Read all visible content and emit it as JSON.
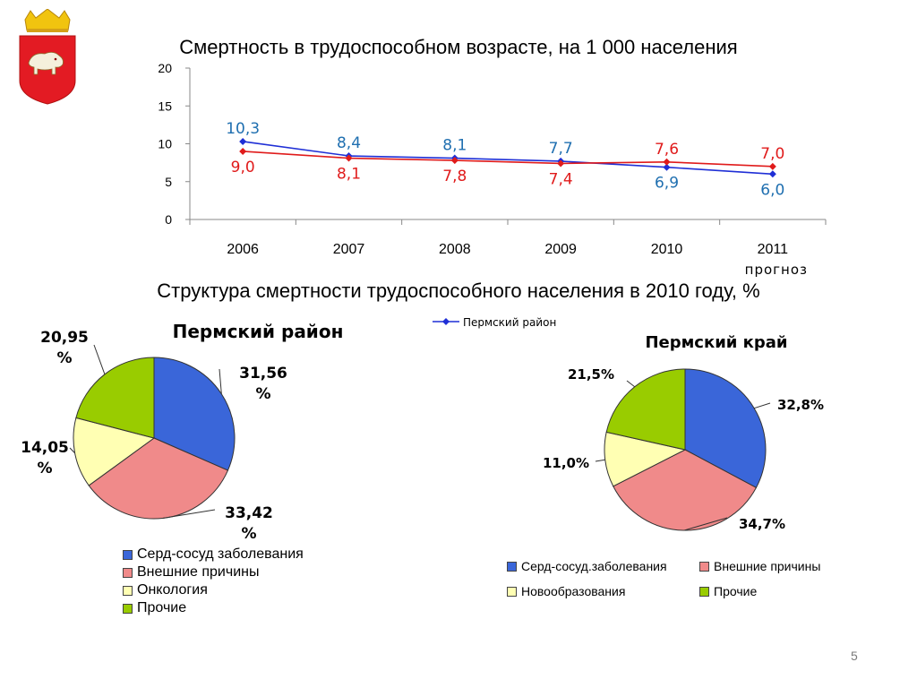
{
  "slide": {
    "page_number": "5"
  },
  "logo": {
    "icon": "perm-coat-of-arms-icon"
  },
  "colors": {
    "blue": "#1f2fd6",
    "red": "#e01b1b",
    "blue_label": "#1f6fb0",
    "red_label": "#e01b1b",
    "pie_blue": "#3a66d9",
    "pie_red": "#f08a8a",
    "pie_yellow": "#ffffb3",
    "pie_green": "#99cc00"
  },
  "chart_data": [
    {
      "type": "line",
      "title": "Смертность в трудоспособном возрасте, на 1 000 населения",
      "categories": [
        "2006",
        "2007",
        "2008",
        "2009",
        "2010",
        "2011"
      ],
      "category_sublabels": [
        "",
        "",
        "",
        "",
        "",
        "прогноз"
      ],
      "ylim": [
        0,
        20
      ],
      "yticks": [
        "0",
        "5",
        "10",
        "15",
        "20"
      ],
      "legend": {
        "position": "bottom",
        "entries": [
          "Пермский район"
        ]
      },
      "series": [
        {
          "name": "Пермский район",
          "color": "#1f2fd6",
          "values": [
            10.3,
            8.4,
            8.1,
            7.7,
            6.9,
            6.0
          ],
          "labels": [
            "10,3",
            "8,4",
            "8,1",
            "7,7",
            "6,9",
            "6,0"
          ]
        },
        {
          "color": "#e01b1b",
          "values": [
            9.0,
            8.1,
            7.8,
            7.4,
            7.6,
            7.0
          ],
          "labels": [
            "9,0",
            "8,1",
            "7,8",
            "7,4",
            "7,6",
            "7,0"
          ]
        }
      ]
    },
    {
      "type": "pie",
      "title": "Пермский район",
      "categories": [
        "Серд-сосуд заболевания",
        "Внешние причины",
        "Онкология",
        "Прочие"
      ],
      "values": [
        31.56,
        33.42,
        14.05,
        20.95
      ],
      "labels": [
        [
          "31,56",
          "%"
        ],
        [
          "33,42",
          "%"
        ],
        [
          "14,05",
          "%"
        ],
        [
          "20,95",
          "%"
        ]
      ]
    },
    {
      "type": "pie",
      "title": "Пермский край",
      "categories": [
        "Серд-сосуд.заболевания",
        "Внешние причины",
        "Новообразования",
        "Прочие"
      ],
      "values": [
        32.8,
        34.7,
        11.0,
        21.5
      ],
      "labels": [
        "32,8%",
        "34,7%",
        "11,0%",
        "21,5%"
      ]
    }
  ],
  "section2": {
    "title": "Структура смертности трудоспособного населения в 2010 году, %"
  }
}
